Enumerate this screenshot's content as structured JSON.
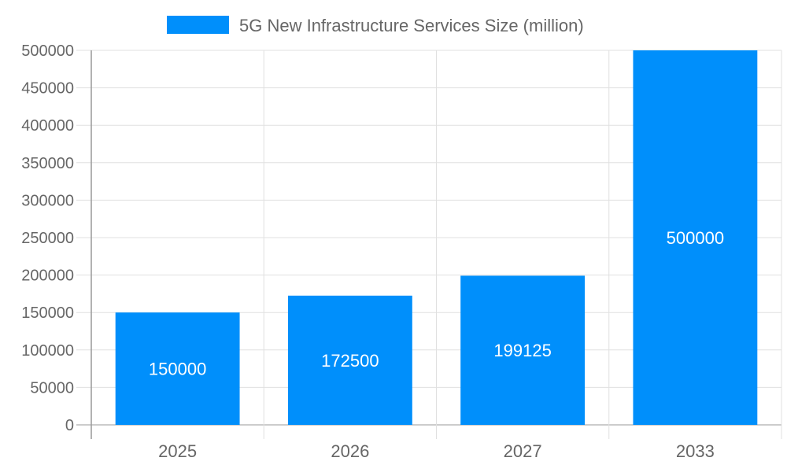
{
  "chart_data": {
    "type": "bar",
    "title": "",
    "xlabel": "",
    "ylabel": "",
    "categories": [
      "2025",
      "2026",
      "2027",
      "2033"
    ],
    "series": [
      {
        "name": "5G New Infrastructure Services Size (million)",
        "values": [
          150000,
          172500,
          199125,
          500000
        ]
      }
    ],
    "ylim": [
      0,
      500000
    ],
    "yticks": [
      0,
      50000,
      100000,
      150000,
      200000,
      250000,
      300000,
      350000,
      400000,
      450000,
      500000
    ],
    "grid": true,
    "legend": "top-center",
    "data_labels": true,
    "colors": {
      "bar": "#008ffb",
      "text": "#666666",
      "grid": "#e0e0e0",
      "axis": "#999999",
      "label": "#ffffff"
    }
  }
}
